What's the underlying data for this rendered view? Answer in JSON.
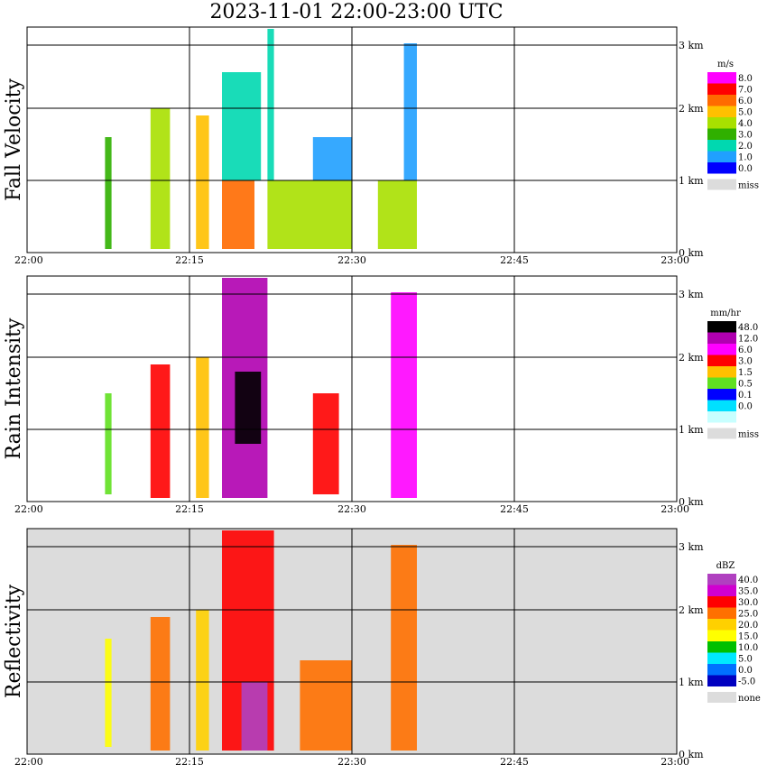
{
  "title": "2023-11-01   22:00-23:00 UTC",
  "time_ticks": [
    "22:00",
    "22:15",
    "22:30",
    "22:45",
    "23:00"
  ],
  "height_ticks": [
    "0 km",
    "1 km",
    "2 km",
    "3 km"
  ],
  "chart_data": [
    {
      "type": "heatmap",
      "ylabel": "Fall Velocity",
      "xlabel": "",
      "x_range": [
        "22:00",
        "23:00"
      ],
      "y_range_km": [
        0,
        3.2
      ],
      "grid": true,
      "background": "#ffffff",
      "colorbar": {
        "unit": "m/s",
        "levels": [
          "8.0",
          "7.0",
          "6.0",
          "5.0",
          "4.0",
          "3.0",
          "2.0",
          "1.0",
          "0.0"
        ],
        "colors": [
          "#ff00ff",
          "#ff0000",
          "#ff6a00",
          "#ffc000",
          "#a8e000",
          "#30b000",
          "#00d8b0",
          "#20a0ff",
          "#0000ff"
        ],
        "extra": {
          "label": "miss",
          "color": "#dcdcdc"
        }
      },
      "clusters": [
        {
          "x": [
            22.12,
            22.13
          ],
          "y": [
            0.05,
            1.6
          ],
          "value": 3.0
        },
        {
          "x": [
            22.19,
            22.22
          ],
          "y": [
            0.05,
            2.0
          ],
          "value": 4.0
        },
        {
          "x": [
            22.26,
            22.28
          ],
          "y": [
            0.05,
            1.9
          ],
          "value": 5.0
        },
        {
          "x": [
            22.3,
            22.35
          ],
          "y": [
            0.05,
            1.0
          ],
          "value": 6.0
        },
        {
          "x": [
            22.3,
            22.36
          ],
          "y": [
            1.0,
            2.5
          ],
          "value": 2.0
        },
        {
          "x": [
            22.37,
            22.38
          ],
          "y": [
            1.0,
            3.1
          ],
          "value": 2.0
        },
        {
          "x": [
            22.37,
            22.5
          ],
          "y": [
            0.05,
            1.0
          ],
          "value": 4.0
        },
        {
          "x": [
            22.44,
            22.5
          ],
          "y": [
            1.0,
            1.6
          ],
          "value": 1.0
        },
        {
          "x": [
            22.54,
            22.6
          ],
          "y": [
            0.05,
            1.0
          ],
          "value": 4.0
        },
        {
          "x": [
            22.58,
            22.6
          ],
          "y": [
            1.0,
            2.9
          ],
          "value": 1.0
        }
      ]
    },
    {
      "type": "heatmap",
      "ylabel": "Rain Intensity",
      "xlabel": "",
      "x_range": [
        "22:00",
        "23:00"
      ],
      "y_range_km": [
        0,
        3.2
      ],
      "grid": true,
      "background": "#ffffff",
      "colorbar": {
        "unit": "mm/hr",
        "levels": [
          "48.0",
          "12.0",
          "6.0",
          "3.0",
          "1.5",
          "0.5",
          "0.1",
          "0.0"
        ],
        "colors": [
          "#000000",
          "#b000b0",
          "#ff00ff",
          "#ff0000",
          "#ffc000",
          "#60e020",
          "#0000ff",
          "#00e0ff",
          "#c8ffff"
        ],
        "extra": {
          "label": "miss",
          "color": "#dcdcdc"
        }
      },
      "clusters": [
        {
          "x": [
            22.12,
            22.13
          ],
          "y": [
            0.1,
            1.5
          ],
          "value": 0.5
        },
        {
          "x": [
            22.19,
            22.22
          ],
          "y": [
            0.05,
            1.9
          ],
          "value": 3.0
        },
        {
          "x": [
            22.26,
            22.28
          ],
          "y": [
            0.05,
            2.0
          ],
          "value": 1.5
        },
        {
          "x": [
            22.3,
            22.37
          ],
          "y": [
            0.05,
            3.1
          ],
          "value": 12.0
        },
        {
          "x": [
            22.32,
            22.36
          ],
          "y": [
            0.8,
            1.8
          ],
          "value": 48.0
        },
        {
          "x": [
            22.44,
            22.48
          ],
          "y": [
            0.1,
            1.5
          ],
          "value": 3.0
        },
        {
          "x": [
            22.56,
            22.6
          ],
          "y": [
            0.05,
            2.9
          ],
          "value": 6.0
        }
      ]
    },
    {
      "type": "heatmap",
      "ylabel": "Reflectivity",
      "xlabel": "",
      "x_range": [
        "22:00",
        "23:00"
      ],
      "y_range_km": [
        0,
        3.2
      ],
      "grid": true,
      "background": "#dcdcdc",
      "colorbar": {
        "unit": "dBZ",
        "levels": [
          "40.0",
          "35.0",
          "30.0",
          "25.0",
          "20.0",
          "15.0",
          "10.0",
          "5.0",
          "0.0",
          "-5.0"
        ],
        "colors": [
          "#b040c0",
          "#d000d0",
          "#ff0000",
          "#ff7000",
          "#ffd000",
          "#ffff00",
          "#00c000",
          "#00e8ff",
          "#0070ff",
          "#0000c0"
        ],
        "extra": {
          "label": "none",
          "color": "#dcdcdc"
        }
      },
      "clusters": [
        {
          "x": [
            22.12,
            22.13
          ],
          "y": [
            0.1,
            1.6
          ],
          "value": 15.0
        },
        {
          "x": [
            22.19,
            22.22
          ],
          "y": [
            0.05,
            1.9
          ],
          "value": 25.0
        },
        {
          "x": [
            22.26,
            22.28
          ],
          "y": [
            0.05,
            2.0
          ],
          "value": 20.0
        },
        {
          "x": [
            22.3,
            22.38
          ],
          "y": [
            0.05,
            3.1
          ],
          "value": 30.0
        },
        {
          "x": [
            22.33,
            22.37
          ],
          "y": [
            0.05,
            1.0
          ],
          "value": 40.0
        },
        {
          "x": [
            22.42,
            22.5
          ],
          "y": [
            0.05,
            1.3
          ],
          "value": 25.0
        },
        {
          "x": [
            22.56,
            22.6
          ],
          "y": [
            0.05,
            2.9
          ],
          "value": 25.0
        }
      ]
    }
  ]
}
